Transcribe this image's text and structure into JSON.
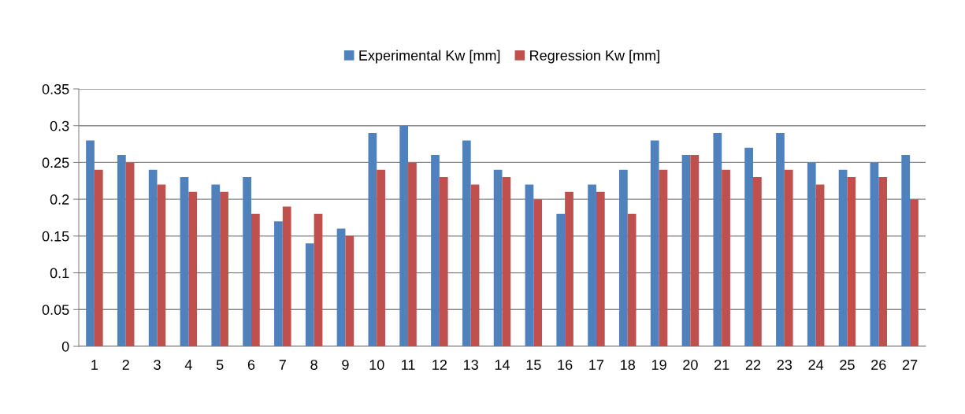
{
  "chart_data": {
    "type": "bar",
    "categories": [
      "1",
      "2",
      "3",
      "4",
      "5",
      "6",
      "7",
      "8",
      "9",
      "10",
      "11",
      "12",
      "13",
      "14",
      "15",
      "16",
      "17",
      "18",
      "19",
      "20",
      "21",
      "22",
      "23",
      "24",
      "25",
      "26",
      "27"
    ],
    "series": [
      {
        "name": "Experimental Kw [mm]",
        "color": "#4f81bd",
        "values": [
          0.28,
          0.26,
          0.24,
          0.23,
          0.22,
          0.23,
          0.17,
          0.14,
          0.16,
          0.29,
          0.3,
          0.26,
          0.28,
          0.24,
          0.22,
          0.18,
          0.22,
          0.24,
          0.28,
          0.26,
          0.29,
          0.27,
          0.29,
          0.25,
          0.24,
          0.25,
          0.26
        ]
      },
      {
        "name": "Regression Kw [mm]",
        "color": "#c0504d",
        "values": [
          0.24,
          0.25,
          0.22,
          0.21,
          0.21,
          0.18,
          0.19,
          0.18,
          0.15,
          0.24,
          0.25,
          0.23,
          0.22,
          0.23,
          0.2,
          0.21,
          0.21,
          0.18,
          0.24,
          0.26,
          0.24,
          0.23,
          0.24,
          0.22,
          0.23,
          0.23,
          0.2
        ]
      }
    ],
    "ylim": [
      0,
      0.35
    ],
    "yticks": [
      0,
      0.05,
      0.1,
      0.15,
      0.2,
      0.25,
      0.3,
      0.35
    ],
    "grid": "y",
    "legend": "top"
  }
}
